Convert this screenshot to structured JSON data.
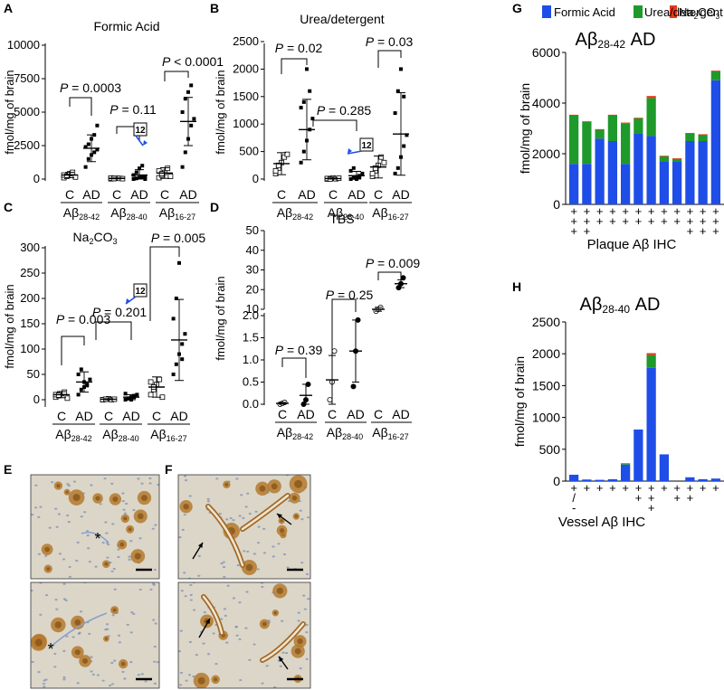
{
  "colors": {
    "formic": "#1f4de8",
    "urea": "#1e9a2a",
    "na2co3": "#e63a1a",
    "micro_bg": "#dcd6c8",
    "micro_plaque": "#b47a2e",
    "micro_nuclei": "#6f85b5"
  },
  "panel_letters": [
    "A",
    "B",
    "C",
    "D",
    "E",
    "F",
    "G",
    "H"
  ],
  "common": {
    "ylabel": "fmol/mg of brain",
    "C": "C",
    "AD": "AD",
    "Ab": "Aβ",
    "r1": "28-42",
    "r2": "28-40",
    "r3": "16-27",
    "callout": "12",
    "P": "P"
  },
  "panelA": {
    "title": "Formic Acid",
    "yticks": [
      "0",
      "2500",
      "5000",
      "7500",
      "10000"
    ],
    "pvals": [
      "= 0.0003",
      "= 0.11",
      "< 0.0001"
    ],
    "groups": [
      {
        "name": "C 28-42",
        "mean": 300,
        "sd": 200,
        "pts": [
          100,
          250,
          400,
          500,
          150,
          300,
          200
        ]
      },
      {
        "name": "AD 28-42",
        "mean": 2300,
        "sd": 1000,
        "pts": [
          900,
          1500,
          1800,
          2000,
          2200,
          2400,
          2600,
          3000,
          3300,
          4000
        ]
      },
      {
        "name": "C 28-40",
        "mean": 50,
        "sd": 30,
        "pts": [
          20,
          40,
          60,
          50,
          30,
          80,
          40
        ]
      },
      {
        "name": "AD 28-40",
        "mean": 300,
        "sd": 400,
        "pts": [
          0,
          50,
          100,
          150,
          200,
          300,
          500,
          800,
          1000,
          0
        ]
      },
      {
        "name": "C 16-27",
        "mean": 450,
        "sd": 400,
        "pts": [
          100,
          300,
          500,
          800,
          200,
          600,
          400
        ]
      },
      {
        "name": "AD 16-27",
        "mean": 4300,
        "sd": 1800,
        "pts": [
          900,
          2000,
          3000,
          4000,
          4500,
          5000,
          6000,
          6500,
          7000
        ]
      }
    ]
  },
  "panelB": {
    "title": "Urea/detergent",
    "yticks": [
      "0",
      "500",
      "1000",
      "1500",
      "2000",
      "2500"
    ],
    "pvals": [
      "= 0.02",
      "= 0.285",
      "= 0.03"
    ],
    "groups": [
      {
        "name": "C 28-42",
        "mean": 280,
        "sd": 200,
        "pts": [
          100,
          200,
          300,
          400,
          450,
          150,
          250
        ]
      },
      {
        "name": "AD 28-42",
        "mean": 900,
        "sd": 550,
        "pts": [
          300,
          500,
          700,
          900,
          1100,
          1300,
          1400,
          2000,
          1600
        ]
      },
      {
        "name": "C 28-40",
        "mean": 10,
        "sd": 10,
        "pts": [
          0,
          10,
          20,
          5,
          15,
          10,
          0
        ]
      },
      {
        "name": "AD 28-40",
        "mean": 60,
        "sd": 80,
        "pts": [
          0,
          20,
          40,
          60,
          100,
          150,
          200,
          0,
          30
        ]
      },
      {
        "name": "C 16-27",
        "mean": 220,
        "sd": 200,
        "pts": [
          50,
          150,
          250,
          400,
          300,
          100,
          200
        ]
      },
      {
        "name": "AD 16-27",
        "mean": 820,
        "sd": 750,
        "pts": [
          100,
          200,
          400,
          600,
          800,
          1200,
          1600,
          2000,
          1500
        ]
      }
    ]
  },
  "panelC": {
    "title": "Na",
    "title_sub": "2",
    "title_tail": "CO",
    "title_sub2": "3",
    "yticks": [
      "0",
      "50",
      "100",
      "150",
      "200",
      "250",
      "300"
    ],
    "pvals": [
      "= 0.003",
      "= 0.201",
      "= 0.005"
    ],
    "groups": [
      {
        "name": "C 28-42",
        "mean": 10,
        "sd": 6,
        "pts": [
          5,
          8,
          12,
          15,
          3,
          10,
          9
        ]
      },
      {
        "name": "AD 28-42",
        "mean": 35,
        "sd": 20,
        "pts": [
          10,
          20,
          25,
          30,
          40,
          50,
          60,
          35,
          28
        ]
      },
      {
        "name": "C 28-40",
        "mean": 1,
        "sd": 1,
        "pts": [
          0,
          1,
          2,
          0,
          1,
          0,
          1
        ]
      },
      {
        "name": "AD 28-40",
        "mean": 5,
        "sd": 5,
        "pts": [
          0,
          2,
          5,
          8,
          10,
          12,
          3,
          0,
          5
        ]
      },
      {
        "name": "C 16-27",
        "mean": 25,
        "sd": 20,
        "pts": [
          10,
          20,
          30,
          40,
          5,
          35,
          25
        ]
      },
      {
        "name": "AD 16-27",
        "mean": 118,
        "sd": 80,
        "pts": [
          50,
          70,
          90,
          110,
          130,
          160,
          200,
          270,
          80
        ]
      }
    ]
  },
  "panelD": {
    "title": "TBS",
    "yticks_low": [
      "0.0",
      "0.5",
      "1.0",
      "1.5",
      "2.0"
    ],
    "yticks_high": [
      "10",
      "20",
      "30",
      "40",
      "50"
    ],
    "pvals": [
      "= 0.39",
      "= 0.25",
      "= 0.009"
    ],
    "groups": [
      {
        "name": "C 28-42",
        "mean": 0.02,
        "sd": 0.02,
        "pts": [
          0.0,
          0.02,
          0.04
        ]
      },
      {
        "name": "AD 28-42",
        "mean": 0.2,
        "sd": 0.25,
        "pts": [
          0.0,
          0.1,
          0.45
        ]
      },
      {
        "name": "C 28-40",
        "mean": 0.55,
        "sd": 0.55,
        "pts": [
          0.1,
          0.5,
          1.2
        ]
      },
      {
        "name": "AD 28-40",
        "mean": 1.2,
        "sd": 0.7,
        "pts": [
          0.4,
          1.2,
          1.9
        ]
      },
      {
        "name": "C 16-27",
        "mean": 10,
        "sd": 1,
        "pts": [
          9,
          10,
          11
        ]
      },
      {
        "name": "AD 16-27",
        "mean": 23,
        "sd": 2,
        "pts": [
          21,
          23,
          26
        ]
      }
    ]
  },
  "panelE": {
    "asterisk": "*"
  },
  "chart_data": [
    {
      "type": "bar",
      "panel": "G",
      "title_a": "Aβ",
      "title_sub": "28-42",
      "title_b": " AD",
      "xlabel": "Plaque Aβ IHC",
      "ylabel": "fmol/mg of brain",
      "ylim": [
        0,
        6000
      ],
      "yticks": [
        "0",
        "2000",
        "4000",
        "6000"
      ],
      "legend": [
        {
          "name": "Formic Acid"
        },
        {
          "name": "Urea/detergent"
        },
        {
          "name": "Na2CO3"
        }
      ],
      "categories": [
        "+++",
        "+++",
        "++",
        "++",
        "++",
        "++",
        "++",
        "++",
        "++",
        "+++",
        "+++",
        "+++"
      ],
      "series": [
        {
          "name": "Formic Acid",
          "values": [
            1600,
            1600,
            2600,
            2500,
            1600,
            2800,
            2700,
            1700,
            1700,
            2500,
            2500,
            4900
          ]
        },
        {
          "name": "Urea/detergent",
          "values": [
            1900,
            1650,
            350,
            1000,
            1600,
            600,
            1500,
            200,
            100,
            300,
            250,
            350
          ]
        },
        {
          "name": "Na2CO3",
          "values": [
            40,
            30,
            20,
            40,
            30,
            20,
            80,
            20,
            20,
            20,
            20,
            30
          ]
        }
      ]
    },
    {
      "type": "bar",
      "panel": "H",
      "title_a": "Aβ",
      "title_sub": "28-40",
      "title_b": " AD",
      "xlabel": "Vessel Aβ IHC",
      "ylabel": "fmol/mg of brain",
      "ylim": [
        0,
        2500
      ],
      "yticks": [
        "0",
        "500",
        "1000",
        "1500",
        "2000",
        "2500"
      ],
      "categories": [
        "+/-",
        "+",
        "+",
        "+",
        "+",
        "++",
        "+++",
        "+",
        "++",
        "++",
        "+",
        "+"
      ],
      "series": [
        {
          "name": "Formic Acid",
          "values": [
            100,
            25,
            20,
            30,
            260,
            810,
            1780,
            420,
            0,
            60,
            30,
            40
          ]
        },
        {
          "name": "Urea/detergent",
          "values": [
            0,
            0,
            0,
            0,
            20,
            0,
            200,
            0,
            0,
            0,
            0,
            0
          ]
        },
        {
          "name": "Na2CO3",
          "values": [
            0,
            0,
            0,
            0,
            0,
            0,
            30,
            0,
            0,
            0,
            0,
            0
          ]
        }
      ]
    }
  ]
}
